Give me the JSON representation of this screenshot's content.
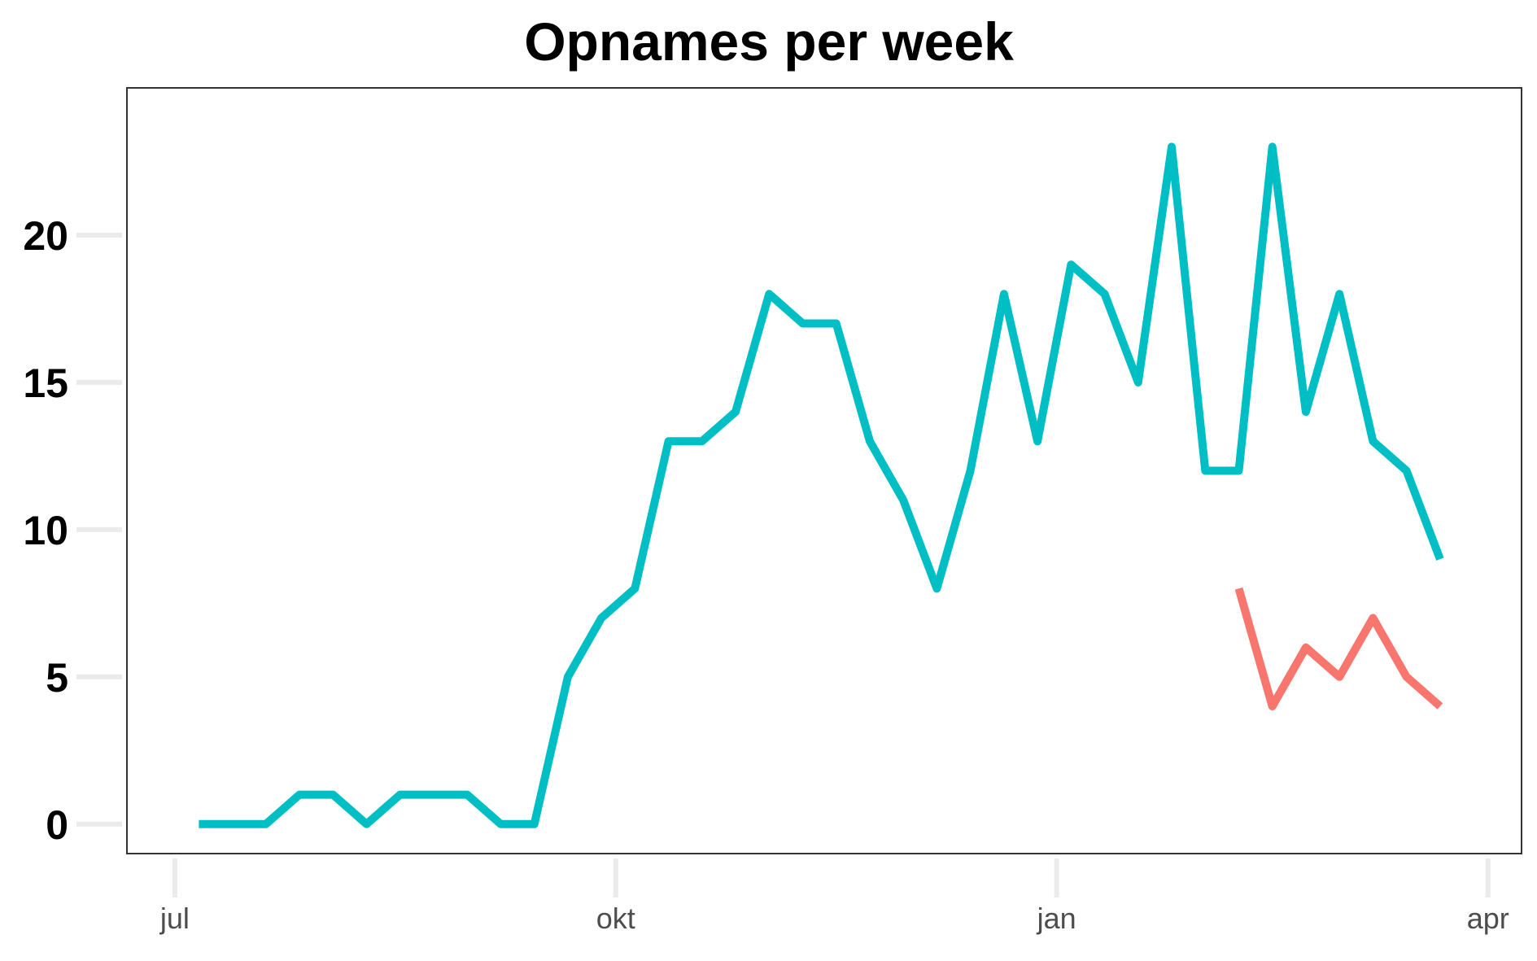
{
  "chart_data": {
    "type": "line",
    "title": "Opnames per week",
    "xlabel": "",
    "ylabel": "",
    "x_axis": {
      "type": "date",
      "range": [
        "2020-06-21",
        "2021-04-08"
      ],
      "ticks": [
        {
          "date": "2020-07-01",
          "label": "jul"
        },
        {
          "date": "2020-10-01",
          "label": "okt"
        },
        {
          "date": "2021-01-01",
          "label": "jan"
        },
        {
          "date": "2021-04-01",
          "label": "apr"
        }
      ]
    },
    "ylim": [
      -1,
      25
    ],
    "yticks": [
      0,
      5,
      10,
      15,
      20
    ],
    "grid": "tick marks only",
    "legend": "none",
    "series": [
      {
        "color": "#00bfc4",
        "points": [
          {
            "date": "2020-07-06",
            "value": 0
          },
          {
            "date": "2020-07-13",
            "value": 0
          },
          {
            "date": "2020-07-20",
            "value": 0
          },
          {
            "date": "2020-07-27",
            "value": 1
          },
          {
            "date": "2020-08-03",
            "value": 1
          },
          {
            "date": "2020-08-10",
            "value": 0
          },
          {
            "date": "2020-08-17",
            "value": 1
          },
          {
            "date": "2020-08-24",
            "value": 1
          },
          {
            "date": "2020-08-31",
            "value": 1
          },
          {
            "date": "2020-09-07",
            "value": 0
          },
          {
            "date": "2020-09-14",
            "value": 0
          },
          {
            "date": "2020-09-21",
            "value": 5
          },
          {
            "date": "2020-09-28",
            "value": 7
          },
          {
            "date": "2020-10-05",
            "value": 8
          },
          {
            "date": "2020-10-12",
            "value": 13
          },
          {
            "date": "2020-10-19",
            "value": 13
          },
          {
            "date": "2020-10-26",
            "value": 14
          },
          {
            "date": "2020-11-02",
            "value": 18
          },
          {
            "date": "2020-11-09",
            "value": 17
          },
          {
            "date": "2020-11-16",
            "value": 17
          },
          {
            "date": "2020-11-23",
            "value": 13
          },
          {
            "date": "2020-11-30",
            "value": 11
          },
          {
            "date": "2020-12-07",
            "value": 8
          },
          {
            "date": "2020-12-14",
            "value": 12
          },
          {
            "date": "2020-12-21",
            "value": 18
          },
          {
            "date": "2020-12-28",
            "value": 13
          },
          {
            "date": "2021-01-04",
            "value": 19
          },
          {
            "date": "2021-01-11",
            "value": 18
          },
          {
            "date": "2021-01-18",
            "value": 15
          },
          {
            "date": "2021-01-25",
            "value": 23
          },
          {
            "date": "2021-02-01",
            "value": 12
          },
          {
            "date": "2021-02-08",
            "value": 12
          },
          {
            "date": "2021-02-15",
            "value": 23
          },
          {
            "date": "2021-02-22",
            "value": 14
          },
          {
            "date": "2021-03-01",
            "value": 18
          },
          {
            "date": "2021-03-08",
            "value": 13
          },
          {
            "date": "2021-03-15",
            "value": 12
          },
          {
            "date": "2021-03-22",
            "value": 9
          }
        ]
      },
      {
        "color": "#f8766d",
        "points": [
          {
            "date": "2021-02-08",
            "value": 8
          },
          {
            "date": "2021-02-15",
            "value": 4
          },
          {
            "date": "2021-02-22",
            "value": 6
          },
          {
            "date": "2021-03-01",
            "value": 5
          },
          {
            "date": "2021-03-08",
            "value": 7
          },
          {
            "date": "2021-03-15",
            "value": 5
          },
          {
            "date": "2021-03-22",
            "value": 4
          }
        ]
      }
    ]
  }
}
